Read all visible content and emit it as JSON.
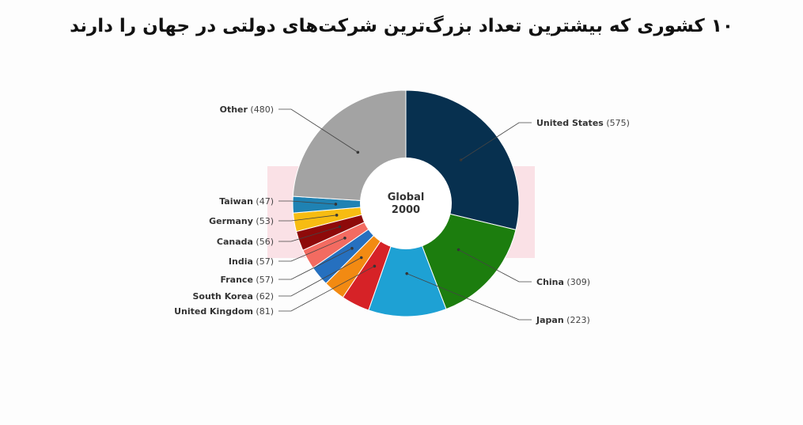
{
  "title": "۱۰ کشوری که بیشترین تعداد بزرگ‌ترین شرکت‌های دولتی در جهان را دارند",
  "chart_data": {
    "type": "pie",
    "variant": "donut",
    "center_label": [
      "Global",
      "2000"
    ],
    "labels": [
      "United States",
      "China",
      "Japan",
      "United Kingdom",
      "South Korea",
      "France",
      "India",
      "Canada",
      "Germany",
      "Taiwan",
      "Other"
    ],
    "values": [
      575,
      309,
      223,
      81,
      62,
      57,
      57,
      56,
      53,
      47,
      480
    ],
    "colors": [
      "#07304f",
      "#1c7d0e",
      "#1ea1d4",
      "#d62227",
      "#f28a12",
      "#2670bf",
      "#f36b61",
      "#8e0a0a",
      "#f7bc12",
      "#1f82b3",
      "#a3a3a3"
    ]
  }
}
